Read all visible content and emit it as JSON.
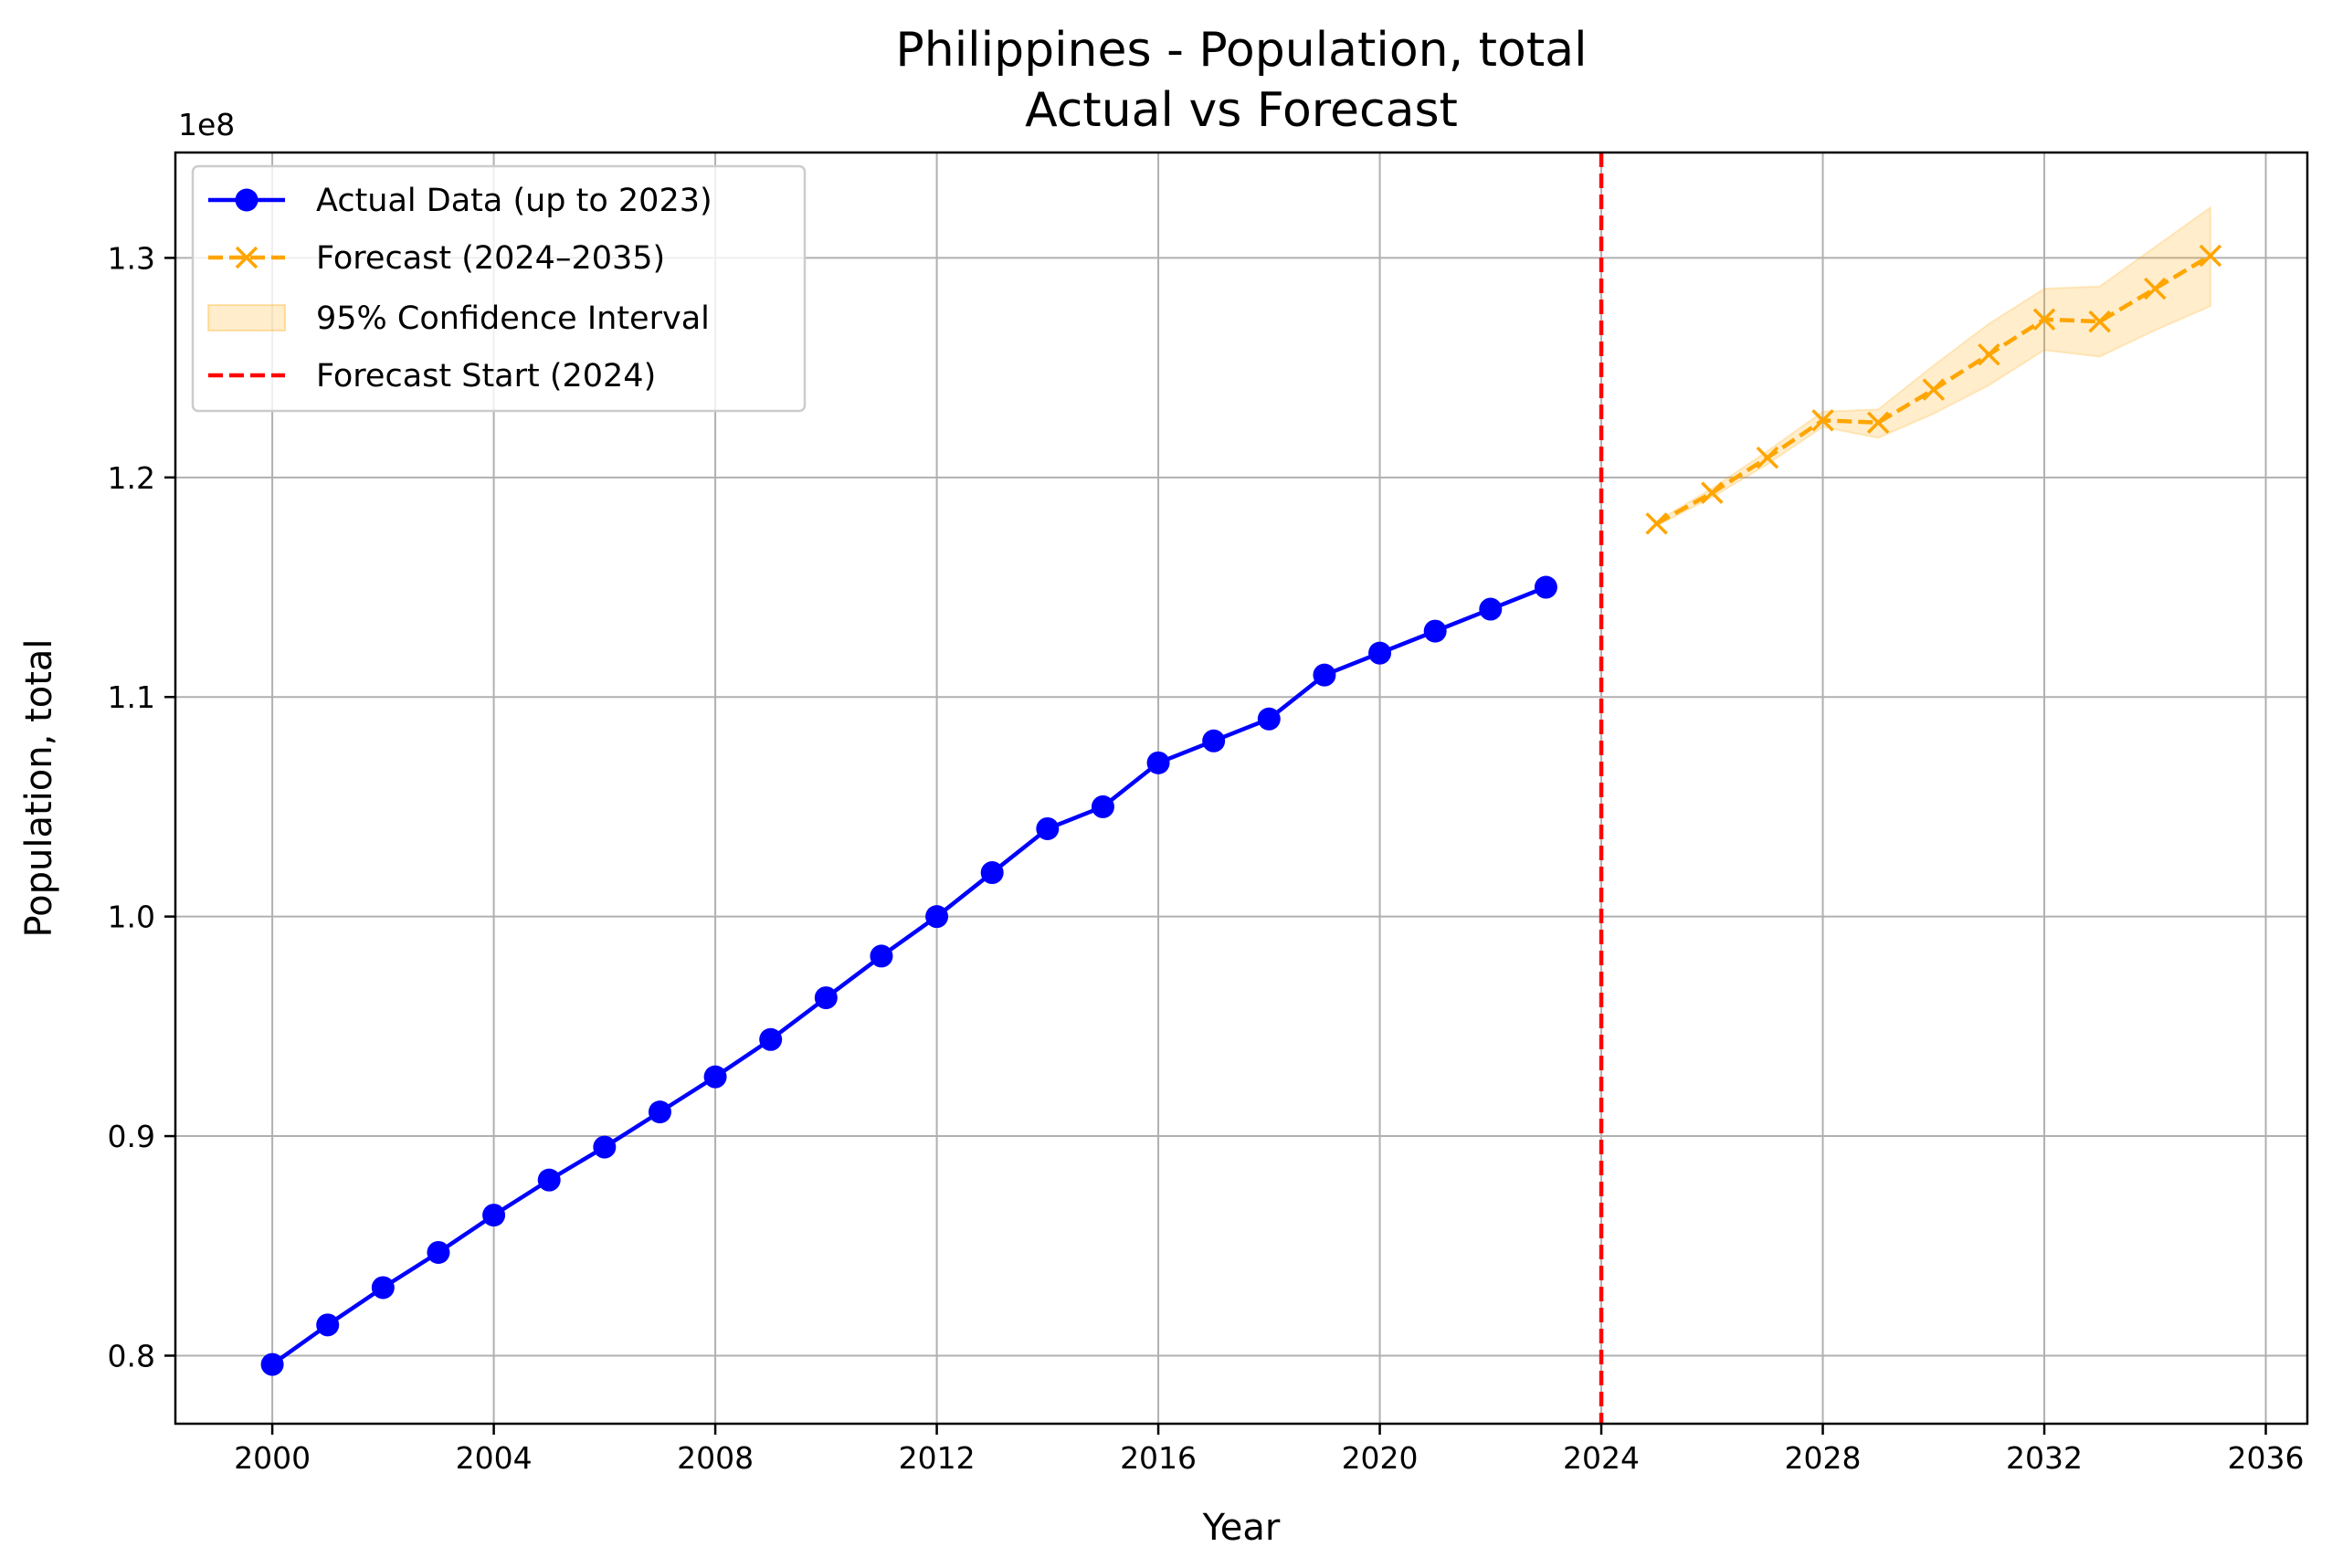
{
  "chart_data": {
    "type": "line",
    "title": [
      "Philippines - Population, total",
      "Actual vs Forecast"
    ],
    "xlabel": "Year",
    "ylabel": "Population, total",
    "y_offset_label": "1e8",
    "y_scale": 100000000,
    "xlim": [
      1998.25,
      2036.75
    ],
    "ylim": [
      76900000,
      134800000
    ],
    "x_ticks": [
      2000,
      2004,
      2008,
      2012,
      2016,
      2020,
      2024,
      2028,
      2032,
      2036
    ],
    "y_ticks": [
      0.8,
      0.9,
      1.0,
      1.1,
      1.2,
      1.3
    ],
    "y_tick_labels": [
      "0.8",
      "0.9",
      "1.0",
      "1.1",
      "1.2",
      "1.3"
    ],
    "grid": true,
    "legend_position": "upper-left",
    "series": [
      {
        "name": "Actual Data (up to 2023)",
        "style": "solid-line-circle-markers",
        "color": "#0000ff",
        "x": [
          2000,
          2001,
          2002,
          2003,
          2004,
          2005,
          2006,
          2007,
          2008,
          2009,
          2010,
          2011,
          2012,
          2013,
          2014,
          2015,
          2016,
          2017,
          2018,
          2019,
          2020,
          2021,
          2022,
          2023
        ],
        "y": [
          79600000,
          81400000,
          83100000,
          84700000,
          86400000,
          88000000,
          89500000,
          91100000,
          92700000,
          94400000,
          96300000,
          98200000,
          100000000,
          102000000,
          104000000,
          105000000,
          107000000,
          108000000,
          109000000,
          111000000,
          112000000,
          113000000,
          114000000,
          115000000
        ]
      },
      {
        "name": "Forecast (2024–2035)",
        "style": "dashed-line-x-markers",
        "color": "#ffa500",
        "x": [
          2025,
          2026,
          2027,
          2028,
          2029,
          2030,
          2031,
          2032,
          2033,
          2034,
          2035
        ],
        "y": [
          117900000,
          119300000,
          120900000,
          122600000,
          122500000,
          124000000,
          125600000,
          127200000,
          127100000,
          128600000,
          130100000
        ]
      }
    ],
    "confidence_interval": {
      "name": "95% Confidence Interval",
      "color": "#ffa500",
      "x": [
        2025,
        2026,
        2027,
        2028,
        2029,
        2030,
        2031,
        2032,
        2033,
        2034,
        2035
      ],
      "lower": [
        117800000,
        119100000,
        120600000,
        122300000,
        121800000,
        122900000,
        124200000,
        125800000,
        125500000,
        126700000,
        127800000
      ],
      "upper": [
        118000000,
        119500000,
        121200000,
        123000000,
        123100000,
        125100000,
        127000000,
        128600000,
        128700000,
        130500000,
        132300000
      ]
    },
    "vertical_line": {
      "name": "Forecast Start (2024)",
      "x": 2024,
      "color": "#ff0000",
      "style": "dashed"
    }
  }
}
